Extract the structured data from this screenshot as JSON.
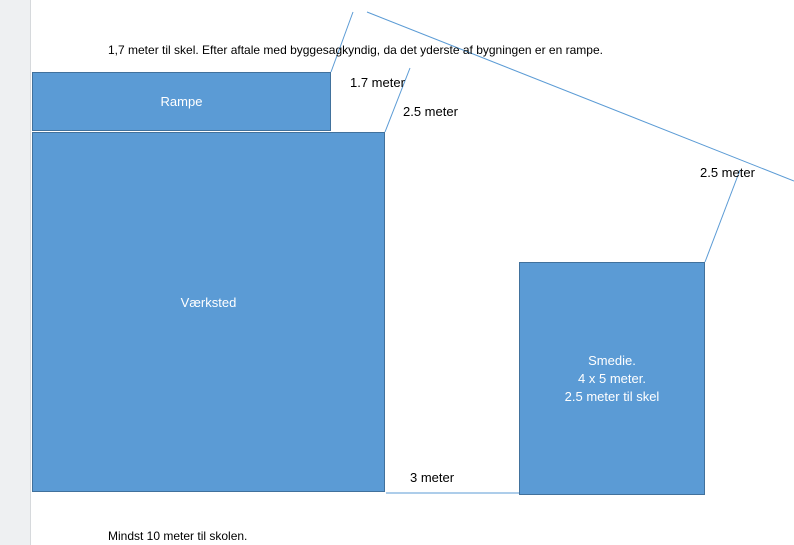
{
  "notes": {
    "top": "1,7 meter til skel. Efter aftale med byggesagkyndig, da det yderste af bygningen er en rampe.",
    "bottom": "Mindst 10 meter til skolen."
  },
  "buildings": {
    "rampe": "Rampe",
    "vaerksted": "Værksted",
    "smedie": [
      "Smedie.",
      "4 x 5 meter.",
      "2.5 meter til skel"
    ]
  },
  "dimensions": {
    "rampe_to_boundary": "1.7 meter",
    "vaerksted_to_boundary": "2.5 meter",
    "smedie_to_boundary": "2.5 meter",
    "vaerksted_to_smedie": "3 meter"
  },
  "colors": {
    "building_fill": "#5b9bd5",
    "building_border": "#41719c",
    "line": "#5b9bd5"
  }
}
